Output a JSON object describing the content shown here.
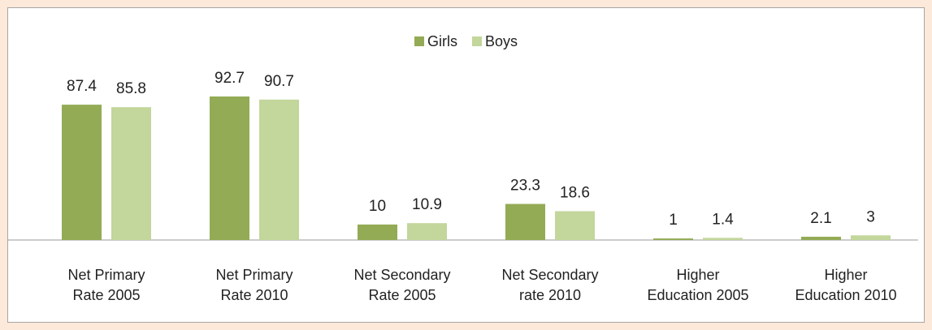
{
  "chart_data": {
    "type": "bar",
    "categories": [
      "Net Primary Rate 2005",
      "Net Primary Rate 2010",
      "Net Secondary Rate 2005",
      "Net Secondary rate 2010",
      "Higher Education 2005",
      "Higher Education 2010"
    ],
    "series": [
      {
        "name": "Girls",
        "color": "#93ab55",
        "values": [
          87.4,
          92.7,
          10,
          23.3,
          1,
          2.1
        ]
      },
      {
        "name": "Boys",
        "color": "#c3d69b",
        "values": [
          85.8,
          90.7,
          10.9,
          18.6,
          1.4,
          3
        ]
      }
    ],
    "legend": "top"
  }
}
